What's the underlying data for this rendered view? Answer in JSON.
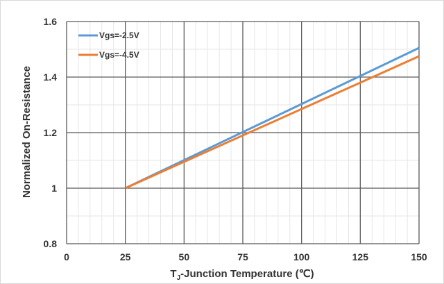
{
  "chart_data": {
    "type": "line",
    "xlabel_main": "T",
    "xlabel_sub": "J",
    "xlabel_rest": "-Junction Temperature (℃)",
    "ylabel": "Normalized On-Resistance",
    "xlim": [
      0,
      150
    ],
    "ylim": [
      0.8,
      1.6
    ],
    "x_ticks": [
      0,
      25,
      50,
      75,
      100,
      125,
      150
    ],
    "x_tick_labels": [
      "0",
      "25",
      "50",
      "75",
      "100",
      "125",
      "150"
    ],
    "y_ticks": [
      0.8,
      1.0,
      1.2,
      1.4,
      1.6
    ],
    "y_tick_labels": [
      "0.8",
      "1",
      "1.2",
      "1.4",
      "1.6"
    ],
    "grid": true,
    "legend_position": "top-left",
    "series": [
      {
        "name": "Vgs=-2.5V",
        "color": "#5b9bd5",
        "x": [
          25,
          150
        ],
        "y": [
          1.0,
          1.505
        ]
      },
      {
        "name": "Vgs=-4.5V",
        "color": "#ed7d31",
        "x": [
          25,
          150
        ],
        "y": [
          1.0,
          1.475
        ]
      }
    ]
  }
}
